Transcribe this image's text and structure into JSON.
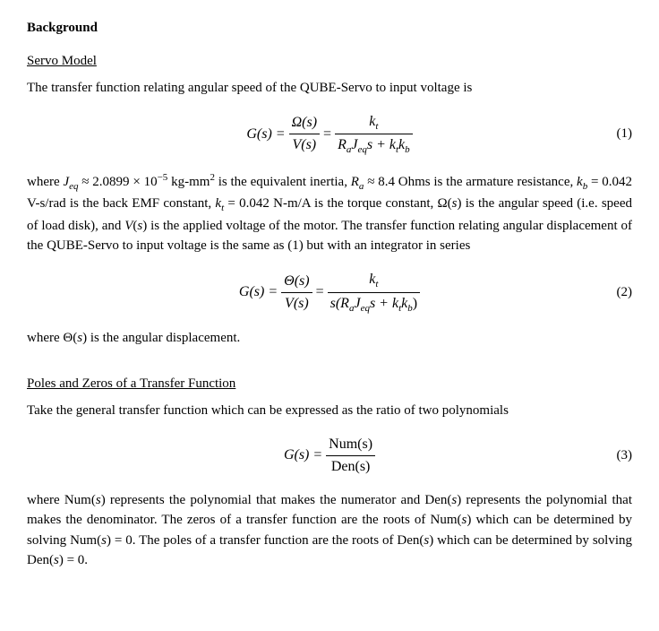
{
  "heading_background": "Background",
  "section1": {
    "heading": "Servo Model",
    "para1": "The transfer function relating angular speed of the QUBE-Servo to input voltage is",
    "eq1": {
      "lhs": "G(s) =",
      "frac1_num": "Ω(s)",
      "frac1_den": "V(s)",
      "mid": "=",
      "frac2_num": "k",
      "frac2_num_sub": "t",
      "frac2_den_pre": "R",
      "frac2_den_sub1": "a",
      "frac2_den_mid1": "J",
      "frac2_den_sub2": "eq",
      "frac2_den_s": "s + k",
      "frac2_den_sub3": "t",
      "frac2_den_k2": "k",
      "frac2_den_sub4": "b",
      "number": "(1)"
    },
    "para2_a": "where ",
    "para2_J": "J",
    "para2_Jsub": "eq",
    "para2_b": " ≈ 2.0899 × 10",
    "para2_exp": "−5",
    "para2_c": " kg-mm",
    "para2_exp2": "2",
    "para2_d": " is the equivalent inertia, ",
    "para2_R": "R",
    "para2_Rsub": "a",
    "para2_e": " ≈ 8.4 Ohms is the armature resistance, ",
    "para2_k1": "k",
    "para2_k1sub": "b",
    "para2_f": " = 0.042 V-s/rad is the back EMF constant, ",
    "para2_k2": "k",
    "para2_k2sub": "t",
    "para2_g": " = 0.042 N-m/A is the torque constant, Ω(",
    "para2_s1": "s",
    "para2_h": ") is the angular speed (i.e. speed of load disk), and ",
    "para2_V": "V",
    "para2_i": "(",
    "para2_s2": "s",
    "para2_j": ") is the applied voltage of the motor. The transfer function relating angular displacement of the QUBE-Servo to input voltage is the same as (1) but with an integrator in series",
    "eq2": {
      "lhs": "G(s) =",
      "frac1_num": "Θ(s)",
      "frac1_den": "V(s)",
      "mid": "=",
      "frac2_num": "k",
      "frac2_num_sub": "t",
      "frac2_den_pre": "s(R",
      "frac2_den_sub1": "a",
      "frac2_den_mid1": "J",
      "frac2_den_sub2": "eq",
      "frac2_den_s": "s + k",
      "frac2_den_sub3": "t",
      "frac2_den_k2": "k",
      "frac2_den_sub4": "b",
      "frac2_den_close": ")",
      "number": "(2)"
    },
    "para3_a": "where Θ(",
    "para3_s": "s",
    "para3_b": ") is the angular displacement."
  },
  "section2": {
    "heading": "Poles and Zeros of a Transfer Function",
    "para1": "Take the general transfer function which can be expressed as the ratio of two polynomials",
    "eq3": {
      "lhs": "G(s) =",
      "frac_num": "Num(s)",
      "frac_den": "Den(s)",
      "number": "(3)"
    },
    "para2_a": "where Num(",
    "para2_s1": "s",
    "para2_b": ") represents the polynomial that makes the numerator and Den(",
    "para2_s2": "s",
    "para2_c": ") represents the polynomial that makes the denominator. The zeros of a transfer function are the roots of Num(",
    "para2_s3": "s",
    "para2_d": ") which can be determined by solving Num(",
    "para2_s4": "s",
    "para2_e": ") = 0. The poles of a transfer function are the roots of Den(",
    "para2_s5": "s",
    "para2_f": ") which can be determined by solving Den(",
    "para2_s6": "s",
    "para2_g": ") = 0."
  }
}
